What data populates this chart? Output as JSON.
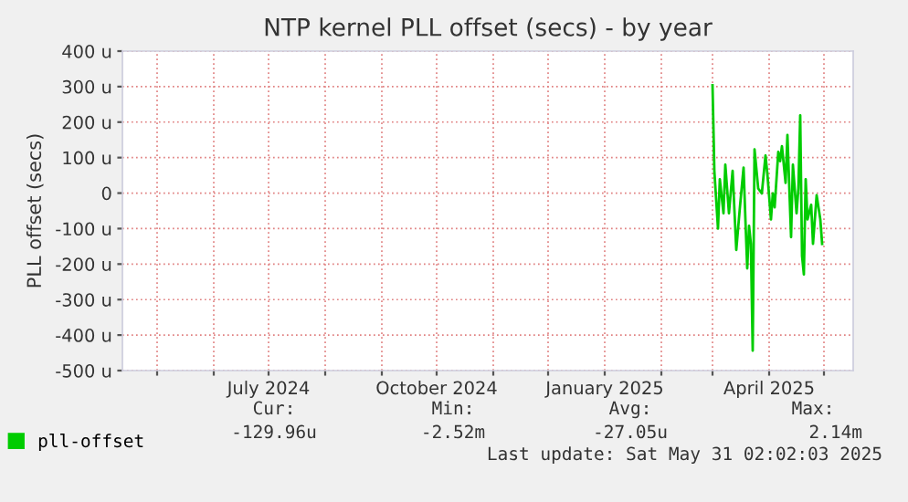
{
  "chart_data": {
    "type": "line",
    "title": "NTP kernel PLL offset (secs) - by year",
    "ylabel": "PLL offset (secs)",
    "xlim": [
      "2024-04-12",
      "2025-05-17"
    ],
    "xticks": [
      {
        "value": "2024-05-01",
        "label": null
      },
      {
        "value": "2024-06-01",
        "label": null
      },
      {
        "value": "2024-07-01",
        "label": "July 2024"
      },
      {
        "value": "2024-08-01",
        "label": null
      },
      {
        "value": "2024-09-01",
        "label": null
      },
      {
        "value": "2024-10-01",
        "label": "October 2024"
      },
      {
        "value": "2024-11-01",
        "label": null
      },
      {
        "value": "2024-12-01",
        "label": null
      },
      {
        "value": "2025-01-01",
        "label": "January 2025"
      },
      {
        "value": "2025-02-01",
        "label": null
      },
      {
        "value": "2025-03-01",
        "label": null
      },
      {
        "value": "2025-04-01",
        "label": "April 2025"
      },
      {
        "value": "2025-05-01",
        "label": null
      }
    ],
    "ylim": [
      -500,
      400
    ],
    "yticks": [
      {
        "value": -500,
        "label": "-500 u"
      },
      {
        "value": -400,
        "label": "-400 u"
      },
      {
        "value": -300,
        "label": "-300 u"
      },
      {
        "value": -200,
        "label": "-200 u"
      },
      {
        "value": -100,
        "label": "-100 u"
      },
      0,
      {
        "value": 100,
        "label": "100 u"
      },
      {
        "value": 200,
        "label": "200 u"
      },
      {
        "value": 300,
        "label": "300 u"
      },
      {
        "value": 400,
        "label": "400 u"
      }
    ],
    "grid": true,
    "legend": "bottom",
    "series": [
      {
        "name": "pll-offset",
        "color": "#00cc00",
        "x": [
          "2025-03-01",
          "2025-03-02",
          "2025-03-04",
          "2025-03-05",
          "2025-03-07",
          "2025-03-08",
          "2025-03-10",
          "2025-03-12",
          "2025-03-14",
          "2025-03-16",
          "2025-03-18",
          "2025-03-19",
          "2025-03-20",
          "2025-03-21",
          "2025-03-22",
          "2025-03-23",
          "2025-03-24",
          "2025-03-26",
          "2025-03-28",
          "2025-03-30",
          "2025-03-31",
          "2025-04-02",
          "2025-04-03",
          "2025-04-04",
          "2025-04-06",
          "2025-04-07",
          "2025-04-08",
          "2025-04-10",
          "2025-04-11",
          "2025-04-13",
          "2025-04-14",
          "2025-04-16",
          "2025-04-17",
          "2025-04-18",
          "2025-04-19",
          "2025-04-20",
          "2025-04-21",
          "2025-04-22",
          "2025-04-24",
          "2025-04-25",
          "2025-04-27",
          "2025-04-29",
          "2025-04-30"
        ],
        "values": [
          304,
          63,
          -100,
          39,
          -57,
          80,
          -57,
          63,
          -160,
          -40,
          72,
          -74,
          -212,
          -92,
          -143,
          -444,
          123,
          13,
          -1,
          106,
          55,
          -74,
          -1,
          -40,
          116,
          90,
          132,
          29,
          164,
          -124,
          80,
          -57,
          13,
          219,
          -177,
          -229,
          39,
          -74,
          -33,
          -143,
          -6,
          -74,
          -143
        ]
      }
    ],
    "annotations": [
      "Cur:",
      "Min:",
      "Avg:",
      "Max:",
      "-129.96u",
      "-2.52m",
      "-27.05u",
      "2.14m",
      "Last update: Sat May 31 02:02:03 2025"
    ]
  }
}
